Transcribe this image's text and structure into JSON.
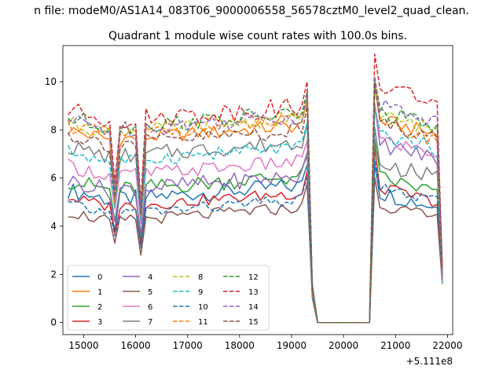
{
  "suptitle": "n file: modeM0/AS1A14_083T06_9000006558_56578cztM0_level2_quad_clean.",
  "chart_data": {
    "type": "line",
    "title": "Quadrant 1 module wise count rates with 100.0s bins.",
    "xlabel": "",
    "ylabel": "",
    "offset_label": "+5.111e8",
    "xlim": [
      14600,
      22100
    ],
    "ylim": [
      -0.5,
      11.5
    ],
    "xticks": [
      15000,
      16000,
      17000,
      18000,
      19000,
      20000,
      21000,
      22000
    ],
    "xtick_labels": [
      "15000",
      "16000",
      "17000",
      "18000",
      "19000",
      "20000",
      "21000",
      "22000"
    ],
    "yticks": [
      0,
      2,
      4,
      6,
      8,
      10
    ],
    "ytick_labels": [
      "0",
      "2",
      "4",
      "6",
      "8",
      "10"
    ],
    "grid": false,
    "legend_location": "lower-left",
    "series": [
      {
        "name": "0",
        "color": "#1f77b4",
        "dash": "solid",
        "base": 5.2,
        "tail": 5.4,
        "dip1": 3.8,
        "dip2": 3.3,
        "amp": 0.35
      },
      {
        "name": "1",
        "color": "#ff7f0e",
        "dash": "solid",
        "base": 7.7,
        "tail": 8.4,
        "dip1": 4.9,
        "dip2": 4.2,
        "amp": 0.3
      },
      {
        "name": "2",
        "color": "#2ca02c",
        "dash": "solid",
        "base": 5.6,
        "tail": 6.0,
        "dip1": 4.2,
        "dip2": 3.6,
        "amp": 0.35
      },
      {
        "name": "3",
        "color": "#d62728",
        "dash": "solid",
        "base": 4.9,
        "tail": 5.6,
        "dip1": 3.7,
        "dip2": 3.2,
        "amp": 0.25
      },
      {
        "name": "4",
        "color": "#9467bd",
        "dash": "solid",
        "base": 5.6,
        "tail": 7.4,
        "dip1": 4.2,
        "dip2": 3.7,
        "amp": 0.35
      },
      {
        "name": "5",
        "color": "#8c564b",
        "dash": "solid",
        "base": 4.3,
        "tail": 4.9,
        "dip1": 3.3,
        "dip2": 2.8,
        "amp": 0.25
      },
      {
        "name": "6",
        "color": "#e377c2",
        "dash": "solid",
        "base": 6.2,
        "tail": 7.6,
        "dip1": 4.7,
        "dip2": 4.1,
        "amp": 0.3
      },
      {
        "name": "7",
        "color": "#7f7f7f",
        "dash": "solid",
        "base": 7.0,
        "tail": 6.6,
        "dip1": 5.1,
        "dip2": 4.4,
        "amp": 0.35
      },
      {
        "name": "8",
        "color": "#bcbd22",
        "dash": "dashed",
        "base": 8.0,
        "tail": 8.6,
        "dip1": 5.4,
        "dip2": 4.7,
        "amp": 0.3
      },
      {
        "name": "9",
        "color": "#17becf",
        "dash": "dashed",
        "base": 6.8,
        "tail": 7.8,
        "dip1": 4.8,
        "dip2": 4.2,
        "amp": 0.3
      },
      {
        "name": "10",
        "color": "#1f77b4",
        "dash": "dashed",
        "base": 4.6,
        "tail": 5.6,
        "dip1": 3.6,
        "dip2": 3.1,
        "amp": 0.25
      },
      {
        "name": "11",
        "color": "#ff7f0e",
        "dash": "dashed",
        "base": 7.9,
        "tail": 8.2,
        "dip1": 5.0,
        "dip2": 4.4,
        "amp": 0.3
      },
      {
        "name": "12",
        "color": "#2ca02c",
        "dash": "dashed",
        "base": 8.2,
        "tail": 8.7,
        "dip1": 5.6,
        "dip2": 4.8,
        "amp": 0.35
      },
      {
        "name": "13",
        "color": "#d62728",
        "dash": "dashed",
        "base": 8.5,
        "tail": 9.8,
        "dip1": 5.8,
        "dip2": 5.0,
        "amp": 0.4
      },
      {
        "name": "14",
        "color": "#9467bd",
        "dash": "dashed",
        "base": 8.1,
        "tail": 9.0,
        "dip1": 5.5,
        "dip2": 4.7,
        "amp": 0.35
      },
      {
        "name": "15",
        "color": "#8c564b",
        "dash": "dashed",
        "base": 7.5,
        "tail": 8.3,
        "dip1": 5.2,
        "dip2": 4.5,
        "amp": 0.35
      }
    ]
  }
}
